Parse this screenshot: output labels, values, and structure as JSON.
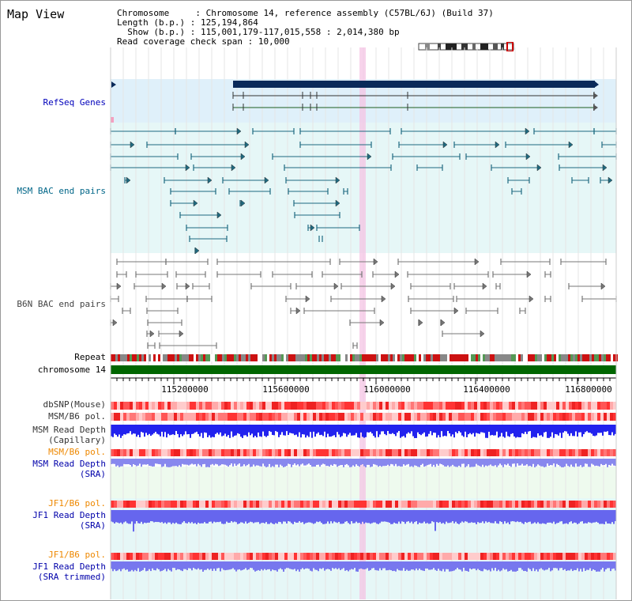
{
  "map_title": "Map View",
  "info": {
    "chromosome_label": "Chromosome    ",
    "chromosome_value": "Chromosome 14, reference assembly (C57BL/6J) (Build 37)",
    "length_label": "Length (b.p.)",
    "length_value": "125,194,864",
    "show_label": "  Show (b.p.)",
    "show_value": "115,001,179-117,015,558 : 2,014,380 bp",
    "coverage_label": "Read coverage check span",
    "coverage_value": "10,000"
  },
  "tracks": {
    "refseq": "RefSeq Genes",
    "msm_bac": "MSM BAC end pairs",
    "b6n_bac": "B6N BAC end pairs",
    "repeat": "Repeat",
    "chromosome": "chromosome 14",
    "dbsnp": "dbSNP(Mouse)",
    "msm_b6_pol": "MSM/B6 pol.",
    "msm_rd_cap_1": "MSM Read Depth",
    "msm_rd_cap_2": "(Capillary)",
    "msm_b6_pol2": "MSM/B6 pol.",
    "msm_rd_sra_1": "MSM Read Depth",
    "msm_rd_sra_2": "(SRA)",
    "jf1_b6_pol": "JF1/B6 pol.",
    "jf1_rd_sra_1": "JF1 Read Depth",
    "jf1_rd_sra_2": "(SRA)",
    "jf1_b6_pol2": "JF1/B6 pol.",
    "jf1_rd_trim_1": "JF1 Read Depth",
    "jf1_rd_trim_2": "(SRA trimmed)"
  },
  "axis": {
    "ticks": [
      "115200000",
      "115600000",
      "116000000",
      "116400000",
      "116800000"
    ]
  },
  "colors": {
    "refseq_label": "#0000bb",
    "msm_label": "#006688",
    "b6n_label": "#444444",
    "orange_label": "#ee8800",
    "blue_label": "#0000aa",
    "gene_dark": "#0a2a5a",
    "gene_line": "#1b5e20",
    "msm_line": "#1f6a80",
    "b6n_line": "#777777",
    "chrom_green": "#006600",
    "highlight": "#f4c4e4"
  }
}
